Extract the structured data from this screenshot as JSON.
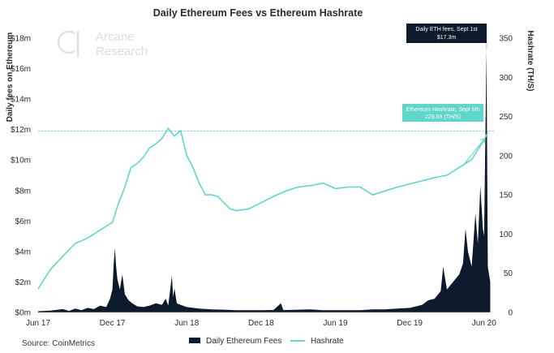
{
  "chart_data": {
    "type": "line",
    "title": "Daily Ethereum Fees vs Ethereum Hashrate",
    "ylabel_left": "Daily fees on Ethereum",
    "ylabel_right": "Hashrate (TH/S)",
    "left_ticks": [
      "$0m",
      "$2m",
      "$4m",
      "$6m",
      "$8m",
      "$10m",
      "$12m",
      "$14m",
      "$16m",
      "$18m"
    ],
    "right_ticks": [
      "0",
      "50",
      "100",
      "150",
      "200",
      "250",
      "300",
      "350"
    ],
    "x_ticks": [
      "Jun 17",
      "Dec 17",
      "Jun 18",
      "Dec 18",
      "Jun 19",
      "Dec 19",
      "Jun 20"
    ],
    "ylim_left": [
      0,
      18
    ],
    "ylim_right": [
      0,
      350
    ],
    "x_range": [
      "2017-06",
      "2020-09"
    ],
    "reference_line_y_left": 11.9,
    "series": [
      {
        "name": "Daily Ethereum Fees",
        "kind": "area",
        "axis": "left",
        "unit": "$m",
        "color": "#0d1a2c",
        "points": [
          [
            0,
            0.08
          ],
          [
            1,
            0.12
          ],
          [
            2,
            0.22
          ],
          [
            2.5,
            0.1
          ],
          [
            3,
            0.25
          ],
          [
            3.5,
            0.15
          ],
          [
            4,
            0.3
          ],
          [
            4.5,
            0.22
          ],
          [
            5,
            0.45
          ],
          [
            5.5,
            0.35
          ],
          [
            5.8,
            0.9
          ],
          [
            6,
            1.5
          ],
          [
            6.1,
            3.2
          ],
          [
            6.2,
            4.2
          ],
          [
            6.3,
            3.0
          ],
          [
            6.4,
            2.2
          ],
          [
            6.6,
            1.5
          ],
          [
            6.8,
            2.5
          ],
          [
            7,
            1.2
          ],
          [
            7.3,
            0.8
          ],
          [
            7.6,
            0.6
          ],
          [
            8,
            0.4
          ],
          [
            8.5,
            0.35
          ],
          [
            9,
            0.45
          ],
          [
            9.5,
            0.6
          ],
          [
            10,
            0.5
          ],
          [
            10.3,
            0.9
          ],
          [
            10.5,
            0.45
          ],
          [
            10.8,
            2.4
          ],
          [
            10.9,
            1.0
          ],
          [
            11,
            1.6
          ],
          [
            11.2,
            0.6
          ],
          [
            11.5,
            0.5
          ],
          [
            12,
            0.35
          ],
          [
            13,
            0.25
          ],
          [
            14,
            0.2
          ],
          [
            15,
            0.18
          ],
          [
            16,
            0.15
          ],
          [
            17,
            0.15
          ],
          [
            18,
            0.15
          ],
          [
            19,
            0.16
          ],
          [
            19.6,
            0.6
          ],
          [
            19.8,
            0.15
          ],
          [
            20,
            0.16
          ],
          [
            21,
            0.18
          ],
          [
            22,
            0.2
          ],
          [
            23,
            0.15
          ],
          [
            24,
            0.15
          ],
          [
            25,
            0.15
          ],
          [
            26,
            0.15
          ],
          [
            27,
            0.2
          ],
          [
            28,
            0.2
          ],
          [
            29,
            0.25
          ],
          [
            30,
            0.3
          ],
          [
            31,
            0.5
          ],
          [
            31.5,
            0.8
          ],
          [
            32,
            0.9
          ],
          [
            32.5,
            1.4
          ],
          [
            32.7,
            3.0
          ],
          [
            33,
            1.5
          ],
          [
            33.5,
            2.0
          ],
          [
            34,
            2.5
          ],
          [
            34.3,
            3.2
          ],
          [
            34.5,
            5.5
          ],
          [
            34.7,
            4.0
          ],
          [
            35,
            3.0
          ],
          [
            35.3,
            6.5
          ],
          [
            35.5,
            4.5
          ],
          [
            35.7,
            8.3
          ],
          [
            35.9,
            5.5
          ],
          [
            36,
            5.0
          ],
          [
            36.2,
            17.3
          ],
          [
            36.3,
            3.0
          ],
          [
            36.5,
            2.0
          ]
        ]
      },
      {
        "name": "Hashrate",
        "kind": "line",
        "axis": "right",
        "unit": "TH/S",
        "color": "#5fd6c8",
        "points": [
          [
            0,
            30
          ],
          [
            1,
            55
          ],
          [
            2,
            72
          ],
          [
            3,
            88
          ],
          [
            4,
            95
          ],
          [
            5,
            105
          ],
          [
            6,
            115
          ],
          [
            6.5,
            140
          ],
          [
            7,
            160
          ],
          [
            7.5,
            185
          ],
          [
            8,
            190
          ],
          [
            8.5,
            198
          ],
          [
            9,
            210
          ],
          [
            9.5,
            215
          ],
          [
            10,
            222
          ],
          [
            10.5,
            235
          ],
          [
            11,
            225
          ],
          [
            11.5,
            232
          ],
          [
            12,
            200
          ],
          [
            12.5,
            185
          ],
          [
            13,
            165
          ],
          [
            13.5,
            150
          ],
          [
            14,
            150
          ],
          [
            14.5,
            148
          ],
          [
            15,
            140
          ],
          [
            15.5,
            132
          ],
          [
            16,
            130
          ],
          [
            17,
            132
          ],
          [
            18,
            140
          ],
          [
            19,
            148
          ],
          [
            20,
            155
          ],
          [
            21,
            160
          ],
          [
            22,
            162
          ],
          [
            23,
            165
          ],
          [
            24,
            158
          ],
          [
            25,
            160
          ],
          [
            26,
            160
          ],
          [
            27,
            150
          ],
          [
            28,
            155
          ],
          [
            29,
            160
          ],
          [
            30,
            164
          ],
          [
            31,
            168
          ],
          [
            32,
            172
          ],
          [
            33,
            175
          ],
          [
            34,
            185
          ],
          [
            35,
            195
          ],
          [
            36,
            220
          ],
          [
            36.3,
            229.69
          ]
        ]
      }
    ],
    "annotations": [
      {
        "lines": [
          "Daily ETH fees, Sept 1st",
          "$17.3m"
        ],
        "style": "dark"
      },
      {
        "lines": [
          "Ethereum Hashrate, Sept 6th",
          "229.69 (TH/S)"
        ],
        "style": "teal"
      }
    ],
    "legend": {
      "placement": "bottom-center",
      "items": [
        "Daily Ethereum Fees",
        "Hashrate"
      ]
    },
    "grid": false
  },
  "logo": {
    "line1": "Arcane",
    "line2": "Research"
  },
  "source": "Source: CoinMetrics",
  "colors": {
    "fees": "#0d1a2c",
    "hashrate": "#5fd6c8",
    "teal_box": "#5fd6c8",
    "dark_box": "#0d1a2c"
  }
}
